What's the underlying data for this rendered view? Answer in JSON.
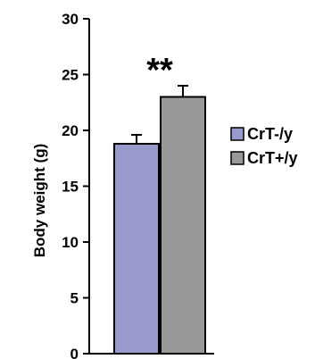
{
  "chart_data": {
    "type": "bar",
    "categories": [
      "CrT-/y",
      "CrT+/y"
    ],
    "values": [
      18.8,
      23.0
    ],
    "errors": [
      0.8,
      1.0
    ],
    "colors": [
      "#9999cc",
      "#999999"
    ],
    "ylabel": "Body weight (g)",
    "xlabel": "",
    "ylim": [
      0,
      30
    ],
    "yticks": [
      0,
      5,
      10,
      15,
      20,
      25,
      30
    ],
    "annotation": "**",
    "legend": {
      "position": "right",
      "entries": [
        {
          "label": "CrT-/y",
          "color": "#9999cc"
        },
        {
          "label": "CrT+/y",
          "color": "#999999"
        }
      ]
    },
    "grid": false
  }
}
